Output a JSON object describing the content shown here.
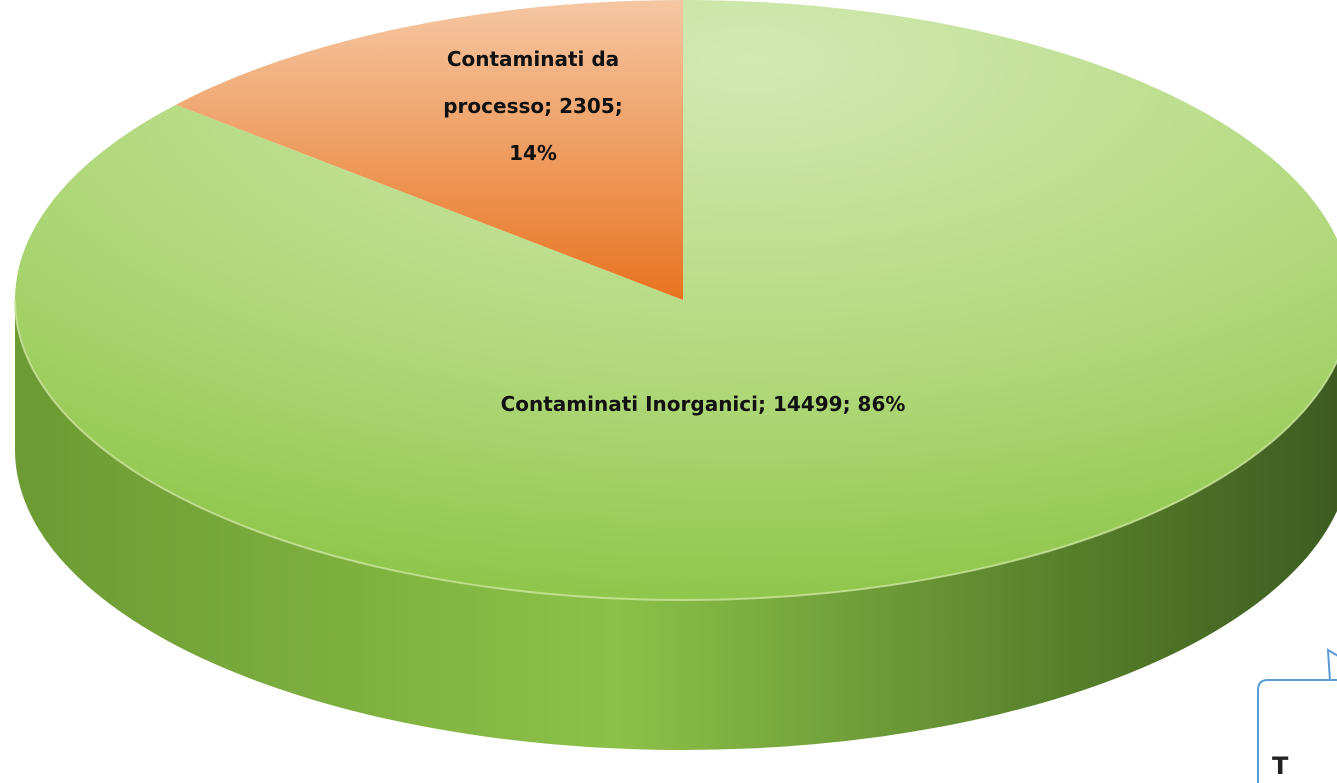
{
  "chart_data": {
    "type": "pie3d",
    "categories": [
      "Contaminati Inorganici",
      "Contaminati da processo"
    ],
    "values": [
      14499,
      2305
    ],
    "percent_labels": [
      "86%",
      "14%"
    ],
    "label_separator": ";",
    "colors": [
      "#a8d46a",
      "#ee8a45"
    ],
    "annotation": "T"
  }
}
